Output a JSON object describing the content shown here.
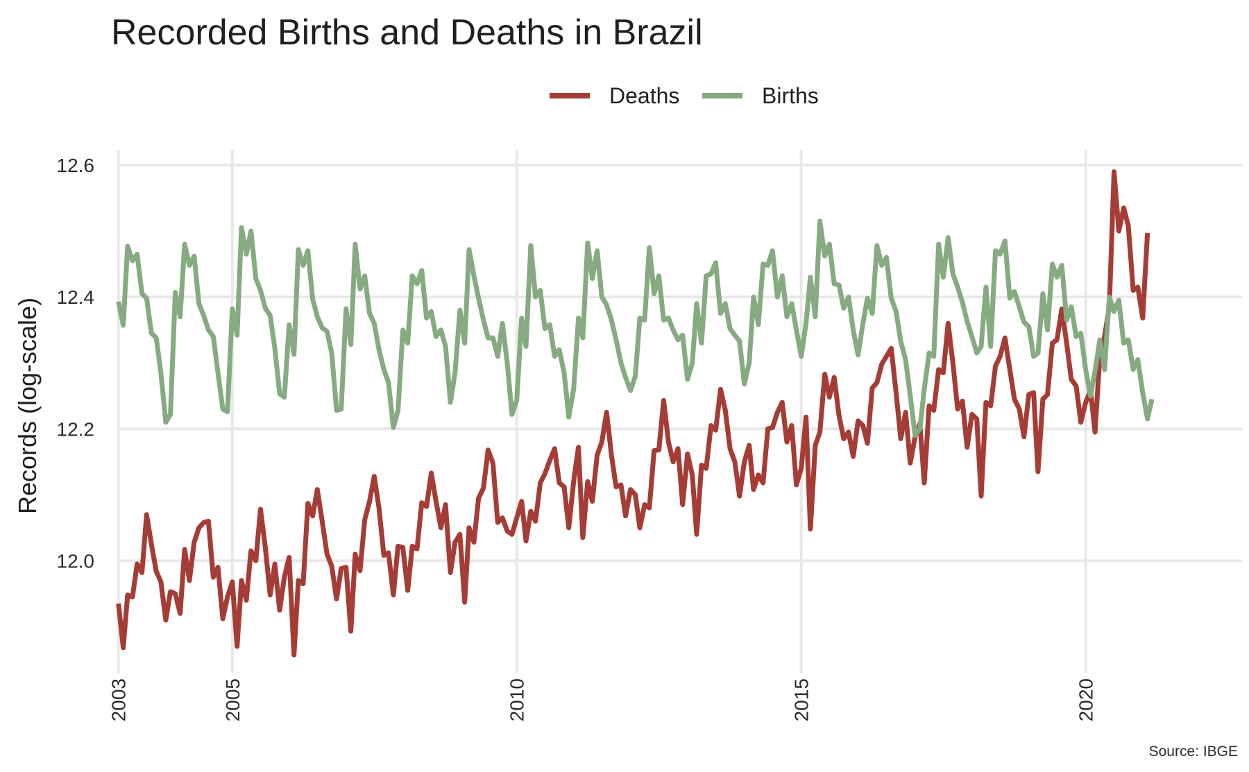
{
  "chart_data": {
    "type": "line",
    "title": "Recorded Births and Deaths in Brazil",
    "xlabel": "",
    "ylabel": "Records (log-scale)",
    "caption": "Source: IBGE",
    "legend_position": "top-center",
    "grid": true,
    "xlim": [
      "2002-10-01",
      "2022-10-01"
    ],
    "ylim": [
      11.83,
      12.64
    ],
    "x_ticks": [
      {
        "label": "2003",
        "date": "2003-01-01"
      },
      {
        "label": "2005",
        "date": "2005-01-01"
      },
      {
        "label": "2010",
        "date": "2010-01-01"
      },
      {
        "label": "2015",
        "date": "2015-01-01"
      },
      {
        "label": "2020",
        "date": "2020-01-01"
      }
    ],
    "y_ticks": [
      {
        "label": "12.0",
        "value": 12.0
      },
      {
        "label": "12.2",
        "value": 12.2
      },
      {
        "label": "12.4",
        "value": 12.4
      },
      {
        "label": "12.6",
        "value": 12.6
      }
    ],
    "x_start": "2003-01",
    "frequency": "monthly",
    "series": [
      {
        "name": "Deaths",
        "color": "#a53c35",
        "values": [
          11.935,
          11.868,
          11.948,
          11.945,
          11.995,
          11.982,
          12.07,
          12.025,
          11.984,
          11.968,
          11.91,
          11.953,
          11.95,
          11.92,
          12.017,
          11.97,
          12.028,
          12.05,
          12.058,
          12.06,
          11.975,
          11.99,
          11.912,
          11.945,
          11.968,
          11.87,
          11.97,
          11.94,
          12.015,
          12.0,
          12.078,
          12.02,
          11.948,
          11.995,
          11.925,
          11.975,
          12.005,
          11.857,
          11.97,
          11.965,
          12.087,
          12.068,
          12.108,
          12.06,
          12.01,
          11.992,
          11.942,
          11.988,
          11.99,
          11.893,
          12.01,
          11.985,
          12.062,
          12.09,
          12.128,
          12.08,
          12.008,
          12.012,
          11.948,
          12.022,
          12.02,
          11.955,
          12.022,
          12.018,
          12.088,
          12.082,
          12.133,
          12.09,
          12.05,
          12.085,
          11.982,
          12.028,
          12.04,
          11.937,
          12.05,
          12.028,
          12.095,
          12.11,
          12.168,
          12.148,
          12.058,
          12.065,
          12.045,
          12.04,
          12.065,
          12.09,
          12.03,
          12.075,
          12.06,
          12.118,
          12.132,
          12.152,
          12.17,
          12.118,
          12.112,
          12.05,
          12.12,
          12.172,
          12.035,
          12.12,
          12.09,
          12.16,
          12.18,
          12.225,
          12.16,
          12.112,
          12.115,
          12.068,
          12.108,
          12.1,
          12.05,
          12.085,
          12.08,
          12.167,
          12.168,
          12.243,
          12.18,
          12.15,
          12.17,
          12.085,
          12.162,
          12.13,
          12.04,
          12.145,
          12.14,
          12.205,
          12.198,
          12.26,
          12.228,
          12.17,
          12.15,
          12.098,
          12.15,
          12.175,
          12.108,
          12.13,
          12.118,
          12.2,
          12.202,
          12.225,
          12.24,
          12.18,
          12.205,
          12.115,
          12.14,
          12.218,
          12.048,
          12.175,
          12.195,
          12.283,
          12.248,
          12.278,
          12.22,
          12.185,
          12.195,
          12.158,
          12.212,
          12.205,
          12.178,
          12.262,
          12.27,
          12.298,
          12.31,
          12.322,
          12.255,
          12.185,
          12.225,
          12.148,
          12.188,
          12.208,
          12.118,
          12.235,
          12.228,
          12.29,
          12.285,
          12.36,
          12.3,
          12.23,
          12.242,
          12.172,
          12.222,
          12.215,
          12.098,
          12.24,
          12.235,
          12.295,
          12.31,
          12.338,
          12.29,
          12.245,
          12.23,
          12.188,
          12.252,
          12.255,
          12.135,
          12.245,
          12.252,
          12.33,
          12.335,
          12.382,
          12.33,
          12.275,
          12.265,
          12.21,
          12.24,
          12.258,
          12.195,
          12.31,
          12.34,
          12.385,
          12.59,
          12.5,
          12.535,
          12.508,
          12.41,
          12.415,
          12.368,
          12.497
        ]
      },
      {
        "name": "Births",
        "color": "#86ab81",
        "values": [
          12.393,
          12.357,
          12.477,
          12.455,
          12.465,
          12.405,
          12.398,
          12.345,
          12.338,
          12.285,
          12.21,
          12.222,
          12.407,
          12.37,
          12.48,
          12.448,
          12.462,
          12.39,
          12.372,
          12.35,
          12.34,
          12.285,
          12.23,
          12.226,
          12.382,
          12.342,
          12.505,
          12.465,
          12.5,
          12.428,
          12.41,
          12.383,
          12.372,
          12.322,
          12.253,
          12.248,
          12.358,
          12.313,
          12.472,
          12.448,
          12.47,
          12.397,
          12.37,
          12.353,
          12.348,
          12.315,
          12.228,
          12.23,
          12.382,
          12.328,
          12.48,
          12.412,
          12.432,
          12.375,
          12.36,
          12.32,
          12.29,
          12.27,
          12.202,
          12.228,
          12.35,
          12.33,
          12.432,
          12.42,
          12.44,
          12.368,
          12.378,
          12.34,
          12.35,
          12.325,
          12.24,
          12.285,
          12.38,
          12.33,
          12.472,
          12.432,
          12.398,
          12.365,
          12.338,
          12.338,
          12.31,
          12.36,
          12.3,
          12.222,
          12.243,
          12.368,
          12.325,
          12.478,
          12.4,
          12.41,
          12.352,
          12.358,
          12.31,
          12.32,
          12.285,
          12.218,
          12.26,
          12.368,
          12.338,
          12.482,
          12.428,
          12.47,
          12.4,
          12.388,
          12.365,
          12.335,
          12.3,
          12.278,
          12.258,
          12.28,
          12.368,
          12.365,
          12.475,
          12.405,
          12.432,
          12.365,
          12.368,
          12.35,
          12.335,
          12.342,
          12.275,
          12.3,
          12.39,
          12.33,
          12.432,
          12.435,
          12.452,
          12.375,
          12.39,
          12.352,
          12.342,
          12.333,
          12.268,
          12.3,
          12.4,
          12.358,
          12.45,
          12.448,
          12.47,
          12.4,
          12.432,
          12.37,
          12.39,
          12.35,
          12.31,
          12.36,
          12.43,
          12.37,
          12.515,
          12.462,
          12.48,
          12.42,
          12.418,
          12.383,
          12.4,
          12.35,
          12.312,
          12.36,
          12.398,
          12.375,
          12.478,
          12.448,
          12.46,
          12.398,
          12.378,
          12.333,
          12.305,
          12.25,
          12.19,
          12.2,
          12.26,
          12.315,
          12.31,
          12.48,
          12.43,
          12.49,
          12.435,
          12.415,
          12.392,
          12.363,
          12.34,
          12.315,
          12.325,
          12.415,
          12.325,
          12.47,
          12.465,
          12.485,
          12.398,
          12.408,
          12.385,
          12.362,
          12.355,
          12.31,
          12.315,
          12.405,
          12.35,
          12.45,
          12.43,
          12.448,
          12.365,
          12.385,
          12.34,
          12.345,
          12.29,
          12.25,
          12.288,
          12.335,
          12.29,
          12.4,
          12.378,
          12.395,
          12.33,
          12.335,
          12.29,
          12.305,
          12.255,
          12.215,
          12.245
        ]
      }
    ]
  }
}
